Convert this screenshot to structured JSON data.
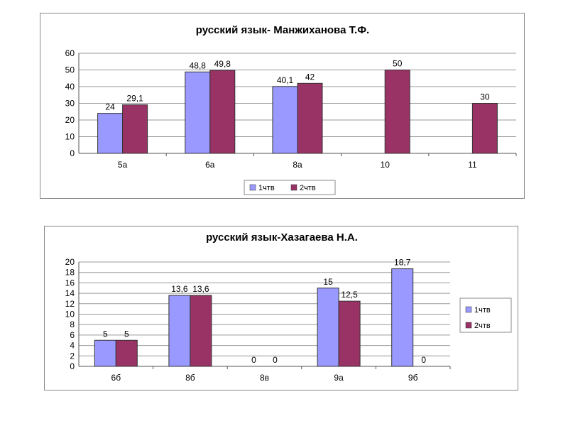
{
  "colors": {
    "series1": "#9999ff",
    "series2": "#993366"
  },
  "chart_data": [
    {
      "type": "bar",
      "title": "русский язык- Манжиханова Т.Ф.",
      "categories": [
        "5а",
        "6а",
        "8а",
        "10",
        "11"
      ],
      "series": [
        {
          "name": "1чтв",
          "values": [
            24,
            48.8,
            40.1,
            null,
            null
          ],
          "labels": [
            "24",
            "48,8",
            "40,1",
            "",
            ""
          ]
        },
        {
          "name": "2чтв",
          "values": [
            29.1,
            49.8,
            42,
            50,
            30
          ],
          "labels": [
            "29,1",
            "49,8",
            "42",
            "50",
            "30"
          ]
        }
      ],
      "ylim": [
        0,
        60
      ],
      "yticks": [
        0,
        10,
        20,
        30,
        40,
        50,
        60
      ],
      "grid": true,
      "legend": "bottom"
    },
    {
      "type": "bar",
      "title": "русский язык-Хазагаева Н.А.",
      "categories": [
        "6б",
        "8б",
        "8в",
        "9а",
        "9б"
      ],
      "series": [
        {
          "name": "1чтв",
          "values": [
            5,
            13.6,
            0,
            15,
            18.7
          ],
          "labels": [
            "5",
            "13,6",
            "0",
            "15",
            "18,7"
          ]
        },
        {
          "name": "2чтв",
          "values": [
            5,
            13.6,
            0,
            12.5,
            0
          ],
          "labels": [
            "5",
            "13,6",
            "0",
            "12,5",
            "0"
          ]
        }
      ],
      "ylim": [
        0,
        20
      ],
      "yticks": [
        0,
        2,
        4,
        6,
        8,
        10,
        12,
        14,
        16,
        18,
        20
      ],
      "grid": true,
      "legend": "right"
    }
  ]
}
